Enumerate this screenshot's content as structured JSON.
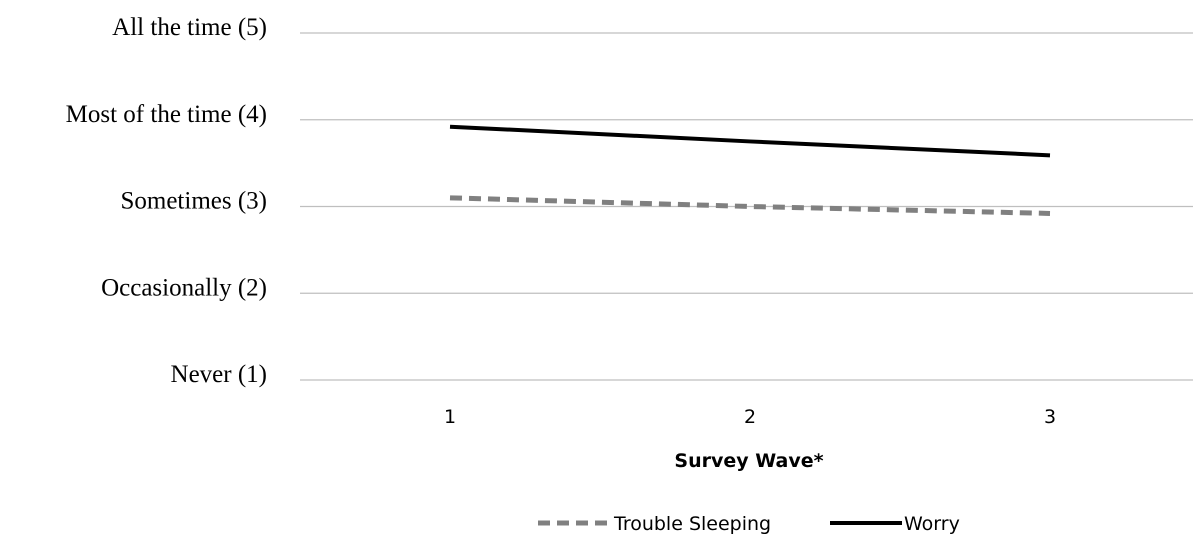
{
  "chart_data": {
    "type": "line",
    "title": "",
    "xlabel": "Survey Wave*",
    "ylabel": "",
    "x": [
      1,
      2,
      3
    ],
    "x_tick_labels": [
      "1",
      "2",
      "3"
    ],
    "y_ticks": [
      {
        "value": 5,
        "label": "All the time (5)"
      },
      {
        "value": 4,
        "label": "Most of the time (4)"
      },
      {
        "value": 3,
        "label": "Sometimes (3)"
      },
      {
        "value": 2,
        "label": "Occasionally (2)"
      },
      {
        "value": 1,
        "label": "Never (1)"
      }
    ],
    "ylim": [
      1,
      5
    ],
    "grid": true,
    "legend_position": "bottom",
    "series": [
      {
        "name": "Trouble Sleeping",
        "values": [
          3.1,
          3.0,
          2.92
        ],
        "color": "#808080",
        "style": "dashed"
      },
      {
        "name": "Worry",
        "values": [
          3.92,
          3.75,
          3.59
        ],
        "color": "#000000",
        "style": "solid"
      }
    ]
  }
}
